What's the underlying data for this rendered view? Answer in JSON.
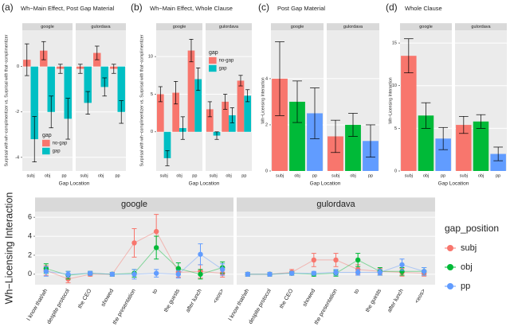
{
  "chart_data": [
    {
      "type": "bar",
      "label": "(a)",
      "title": "Wh−Main Effect, Post Gap Material",
      "ylabel": "Surprisal with wh−complimentizer vs. Surprisal with that−complimentizer",
      "xlabel": "Gap Location",
      "facets": [
        "google",
        "gulordava"
      ],
      "categories": [
        "subj",
        "obj",
        "pp"
      ],
      "ylim": [
        -4.6,
        1.6
      ],
      "yticks": [
        -4,
        -2,
        0
      ],
      "grid": true,
      "legend": "bottom-right",
      "legend_title": "gap",
      "series": [
        {
          "name": "no-gap",
          "color": "#F8766D",
          "values": [
            [
              0.3,
              0.7,
              -0.1
            ],
            [
              -0.1,
              0.6,
              -0.1
            ]
          ],
          "errors": [
            [
              0.7,
              0.4,
              0.2
            ],
            [
              0.2,
              0.3,
              0.2
            ]
          ]
        },
        {
          "name": "gap",
          "color": "#00BFC4",
          "values": [
            [
              -3.2,
              -2.0,
              -2.3
            ],
            [
              -1.6,
              -0.9,
              -2.0
            ]
          ],
          "errors": [
            [
              1.0,
              0.7,
              0.9
            ],
            [
              0.5,
              0.4,
              0.5
            ]
          ]
        }
      ]
    },
    {
      "type": "bar",
      "label": "(b)",
      "title": "Wh−Main Effect, Whole Clause",
      "ylabel": "Surprisal with wh−complimentizer vs. Surprisal with that−complimentizer",
      "xlabel": "Gap Location",
      "facets": [
        "google",
        "gulordava"
      ],
      "categories": [
        "subj",
        "obj",
        "pp"
      ],
      "ylim": [
        -5.2,
        13.5
      ],
      "yticks": [
        0,
        5,
        10
      ],
      "grid": true,
      "legend": "top-left",
      "legend_title": "gap",
      "series": [
        {
          "name": "no-gap",
          "color": "#F8766D",
          "values": [
            [
              5.0,
              5.2,
              10.8
            ],
            [
              3.0,
              4.0,
              6.8
            ]
          ],
          "errors": [
            [
              1.0,
              1.5,
              1.5
            ],
            [
              1.0,
              1.0,
              0.7
            ]
          ]
        },
        {
          "name": "gap",
          "color": "#00BFC4",
          "values": [
            [
              -3.5,
              0.5,
              7.0
            ],
            [
              -0.5,
              2.2,
              4.8
            ]
          ],
          "errors": [
            [
              1.0,
              1.5,
              1.5
            ],
            [
              0.5,
              1.0,
              0.8
            ]
          ]
        }
      ]
    },
    {
      "type": "bar",
      "label": "(c)",
      "title": "Post Gap Material",
      "ylabel": "Wh−Licensing Interaction",
      "xlabel": "Gap Location",
      "facets": [
        "google",
        "gulordava"
      ],
      "categories": [
        "subj",
        "obj",
        "pp"
      ],
      "colors": [
        "#F8766D",
        "#00BA38",
        "#619CFF"
      ],
      "ylim": [
        0,
        6.1
      ],
      "yticks": [
        0,
        2,
        4
      ],
      "grid": true,
      "values": [
        [
          4.0,
          3.0,
          2.5
        ],
        [
          1.5,
          2.0,
          1.3
        ]
      ],
      "errors": [
        [
          1.6,
          0.9,
          1.1
        ],
        [
          0.7,
          0.5,
          0.7
        ]
      ]
    },
    {
      "type": "bar",
      "label": "(d)",
      "title": "Whole Clause",
      "ylabel": "Wh−Licensing Interaction",
      "xlabel": "Gap Location",
      "facets": [
        "google",
        "gulordava"
      ],
      "categories": [
        "subj",
        "obj",
        "pp"
      ],
      "colors": [
        "#F8766D",
        "#00BA38",
        "#619CFF"
      ],
      "ylim": [
        0,
        16.5
      ],
      "yticks": [
        0,
        5,
        10,
        15
      ],
      "grid": true,
      "values": [
        [
          13.5,
          6.5,
          3.8
        ],
        [
          5.4,
          5.8,
          2.0
        ]
      ],
      "errors": [
        [
          2.0,
          1.5,
          1.3
        ],
        [
          1.0,
          0.8,
          0.8
        ]
      ]
    },
    {
      "type": "line",
      "ylabel": "Wh−Licensing Interaction",
      "facets": [
        "google",
        "gulordava"
      ],
      "categories": [
        "I know that/wh",
        "despite protocol",
        "the CEO",
        "showed",
        "the presentation",
        "to",
        "the guests",
        "after lunch",
        "<eos>"
      ],
      "ylim": [
        -1.1,
        6.6
      ],
      "yticks": [
        0,
        2,
        4,
        6
      ],
      "grid": true,
      "legend": "right",
      "legend_title": "gap_position",
      "series": [
        {
          "name": "subj",
          "color": "#F8766D",
          "values": [
            [
              0.4,
              -0.5,
              0,
              0,
              3.3,
              4.5,
              0.2,
              0.3,
              0.1
            ],
            [
              0,
              0,
              0.2,
              1.5,
              1.5,
              0.5,
              0.3,
              0.2,
              0.1
            ]
          ],
          "errors": [
            [
              0.5,
              0.4,
              0.2,
              0.2,
              1.5,
              1.8,
              0.5,
              0.7,
              0.4
            ],
            [
              0.2,
              0.2,
              0.3,
              0.7,
              0.7,
              0.5,
              0.3,
              0.4,
              0.3
            ]
          ]
        },
        {
          "name": "obj",
          "color": "#00BA38",
          "values": [
            [
              0.6,
              -0.1,
              0.1,
              0,
              0.1,
              2.8,
              0.6,
              0,
              0.7
            ],
            [
              0,
              0,
              0.1,
              0,
              0.1,
              1.5,
              0.3,
              0.3,
              0.3
            ]
          ],
          "errors": [
            [
              0.5,
              0.4,
              0.2,
              0.2,
              0.4,
              1.2,
              0.6,
              0.5,
              0.6
            ],
            [
              0.2,
              0.2,
              0.2,
              0.2,
              0.3,
              0.7,
              0.4,
              0.4,
              0.4
            ]
          ]
        },
        {
          "name": "pp",
          "color": "#619CFF",
          "values": [
            [
              0.3,
              0,
              0.1,
              0,
              0,
              0.1,
              0,
              2.1,
              0.5
            ],
            [
              0,
              0,
              0.1,
              0.1,
              0.2,
              0.2,
              0.2,
              1.0,
              0.3
            ]
          ],
          "errors": [
            [
              0.5,
              0.3,
              0.2,
              0.2,
              0.5,
              0.4,
              0.4,
              1.1,
              0.6
            ],
            [
              0.2,
              0.2,
              0.2,
              0.2,
              0.3,
              0.3,
              0.3,
              0.6,
              0.4
            ]
          ]
        }
      ]
    }
  ]
}
